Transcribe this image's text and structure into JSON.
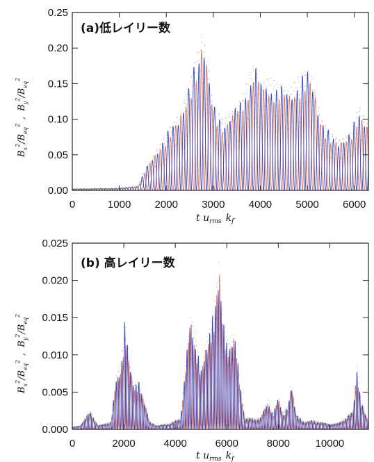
{
  "chart_data": [
    {
      "type": "line",
      "title": "(a)低レイリー数",
      "xlabel": "t u_rms k_f",
      "ylabel": "B_x^2/B_eq^2 , B_y^2/B_eq^2",
      "xlim": [
        0,
        6300
      ],
      "ylim": [
        0,
        0.25
      ],
      "x_ticks": [
        0,
        1000,
        2000,
        3000,
        4000,
        5000,
        6000
      ],
      "y_ticks": [
        "0.00",
        "0.05",
        "0.10",
        "0.15",
        "0.20",
        "0.25"
      ],
      "period": 220,
      "colors": {
        "x": "#2233bb",
        "y": "#d0604a",
        "dots": "#555555"
      },
      "envelope": {
        "x": [
          0,
          1000,
          1400,
          1550,
          1700,
          1900,
          2100,
          2300,
          2450,
          2600,
          2700,
          2780,
          2850,
          3000,
          3200,
          3400,
          3600,
          3800,
          3900,
          4000,
          4200,
          4400,
          4600,
          4800,
          5000,
          5100,
          5300,
          5500,
          5700,
          5900,
          6100,
          6300
        ],
        "y": [
          0.002,
          0.003,
          0.006,
          0.03,
          0.045,
          0.07,
          0.09,
          0.11,
          0.14,
          0.18,
          0.2,
          0.23,
          0.19,
          0.12,
          0.1,
          0.11,
          0.13,
          0.17,
          0.18,
          0.15,
          0.16,
          0.15,
          0.14,
          0.16,
          0.17,
          0.16,
          0.1,
          0.08,
          0.07,
          0.08,
          0.12,
          0.09
        ]
      }
    },
    {
      "type": "line",
      "title": "(b) 高レイリー数",
      "xlabel": "t u_rms k_f",
      "ylabel": "B_x^2/B_eq^2 , B_y^2/B_eq^2",
      "xlim": [
        0,
        11500
      ],
      "ylim": [
        0,
        0.025
      ],
      "x_ticks": [
        0,
        2000,
        4000,
        6000,
        8000,
        10000
      ],
      "y_ticks": [
        "0.000",
        "0.005",
        "0.010",
        "0.015",
        "0.020",
        "0.025"
      ],
      "period": 220,
      "colors": {
        "x": "#2233bb",
        "y": "#d0604a",
        "dots": "#555555"
      },
      "envelope": {
        "x": [
          0,
          300,
          500,
          700,
          1000,
          1500,
          1700,
          1900,
          2050,
          2200,
          2400,
          2600,
          2800,
          3000,
          3300,
          3800,
          4200,
          4400,
          4600,
          4800,
          5000,
          5200,
          5500,
          5700,
          5850,
          6000,
          6300,
          6500,
          6700,
          7000,
          7300,
          7600,
          7800,
          8000,
          8200,
          8400,
          8500,
          8700,
          9000,
          9300,
          9600,
          10000,
          10300,
          10600,
          10900,
          11050,
          11200,
          11500
        ],
        "y": [
          0.0003,
          0.0005,
          0.0015,
          0.0025,
          0.0005,
          0.001,
          0.007,
          0.009,
          0.015,
          0.01,
          0.006,
          0.0065,
          0.004,
          0.001,
          0.0005,
          0.0008,
          0.0015,
          0.009,
          0.0155,
          0.012,
          0.008,
          0.012,
          0.016,
          0.023,
          0.015,
          0.012,
          0.013,
          0.007,
          0.0015,
          0.0015,
          0.0015,
          0.004,
          0.002,
          0.0045,
          0.002,
          0.0035,
          0.0065,
          0.002,
          0.001,
          0.0012,
          0.001,
          0.0007,
          0.0008,
          0.0015,
          0.0025,
          0.009,
          0.004,
          0.001
        ]
      }
    }
  ]
}
